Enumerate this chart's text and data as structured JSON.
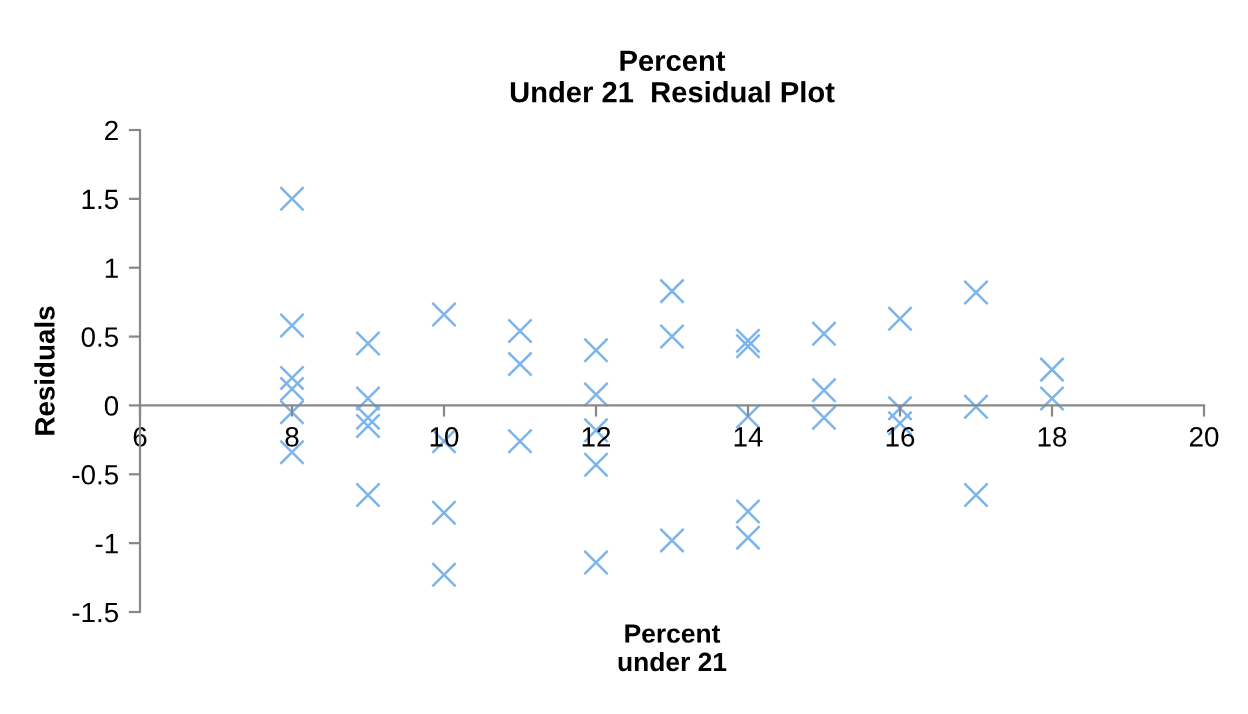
{
  "chart_data": {
    "type": "scatter",
    "title": "Percent\nUnder 21  Residual Plot",
    "xlabel": "Percent\nunder 21",
    "ylabel": "Residuals",
    "x": [
      8,
      8,
      8,
      8,
      8,
      8,
      9,
      9,
      9,
      9,
      9,
      10,
      10,
      10,
      10,
      11,
      11,
      11,
      12,
      12,
      12,
      12,
      12,
      13,
      13,
      13,
      14,
      14,
      14,
      14,
      14,
      15,
      15,
      15,
      16,
      16,
      16,
      17,
      17,
      17,
      18,
      18
    ],
    "series": [
      {
        "color": "#7cb5ec",
        "values": [
          1.5,
          0.58,
          0.2,
          0.12,
          -0.05,
          -0.34,
          0.45,
          0.05,
          -0.09,
          -0.15,
          -0.65,
          0.66,
          -0.26,
          -0.78,
          -1.23,
          0.54,
          0.3,
          -0.26,
          0.4,
          0.08,
          -0.18,
          -0.43,
          -1.14,
          0.83,
          0.5,
          -0.98,
          0.47,
          0.43,
          -0.08,
          -0.77,
          -0.96,
          0.52,
          0.11,
          -0.09,
          0.63,
          -0.02,
          -0.13,
          0.82,
          -0.01,
          -0.65,
          0.26,
          0.05
        ]
      }
    ],
    "xlim": [
      6,
      20
    ],
    "xticks": [
      6,
      8,
      10,
      12,
      14,
      16,
      18,
      20
    ],
    "ylim": [
      -1.5,
      2
    ],
    "yticks": [
      -1.5,
      -1,
      -0.5,
      0,
      0.5,
      1,
      1.5,
      2
    ],
    "marker": "cross",
    "grid": false,
    "legend": false
  }
}
